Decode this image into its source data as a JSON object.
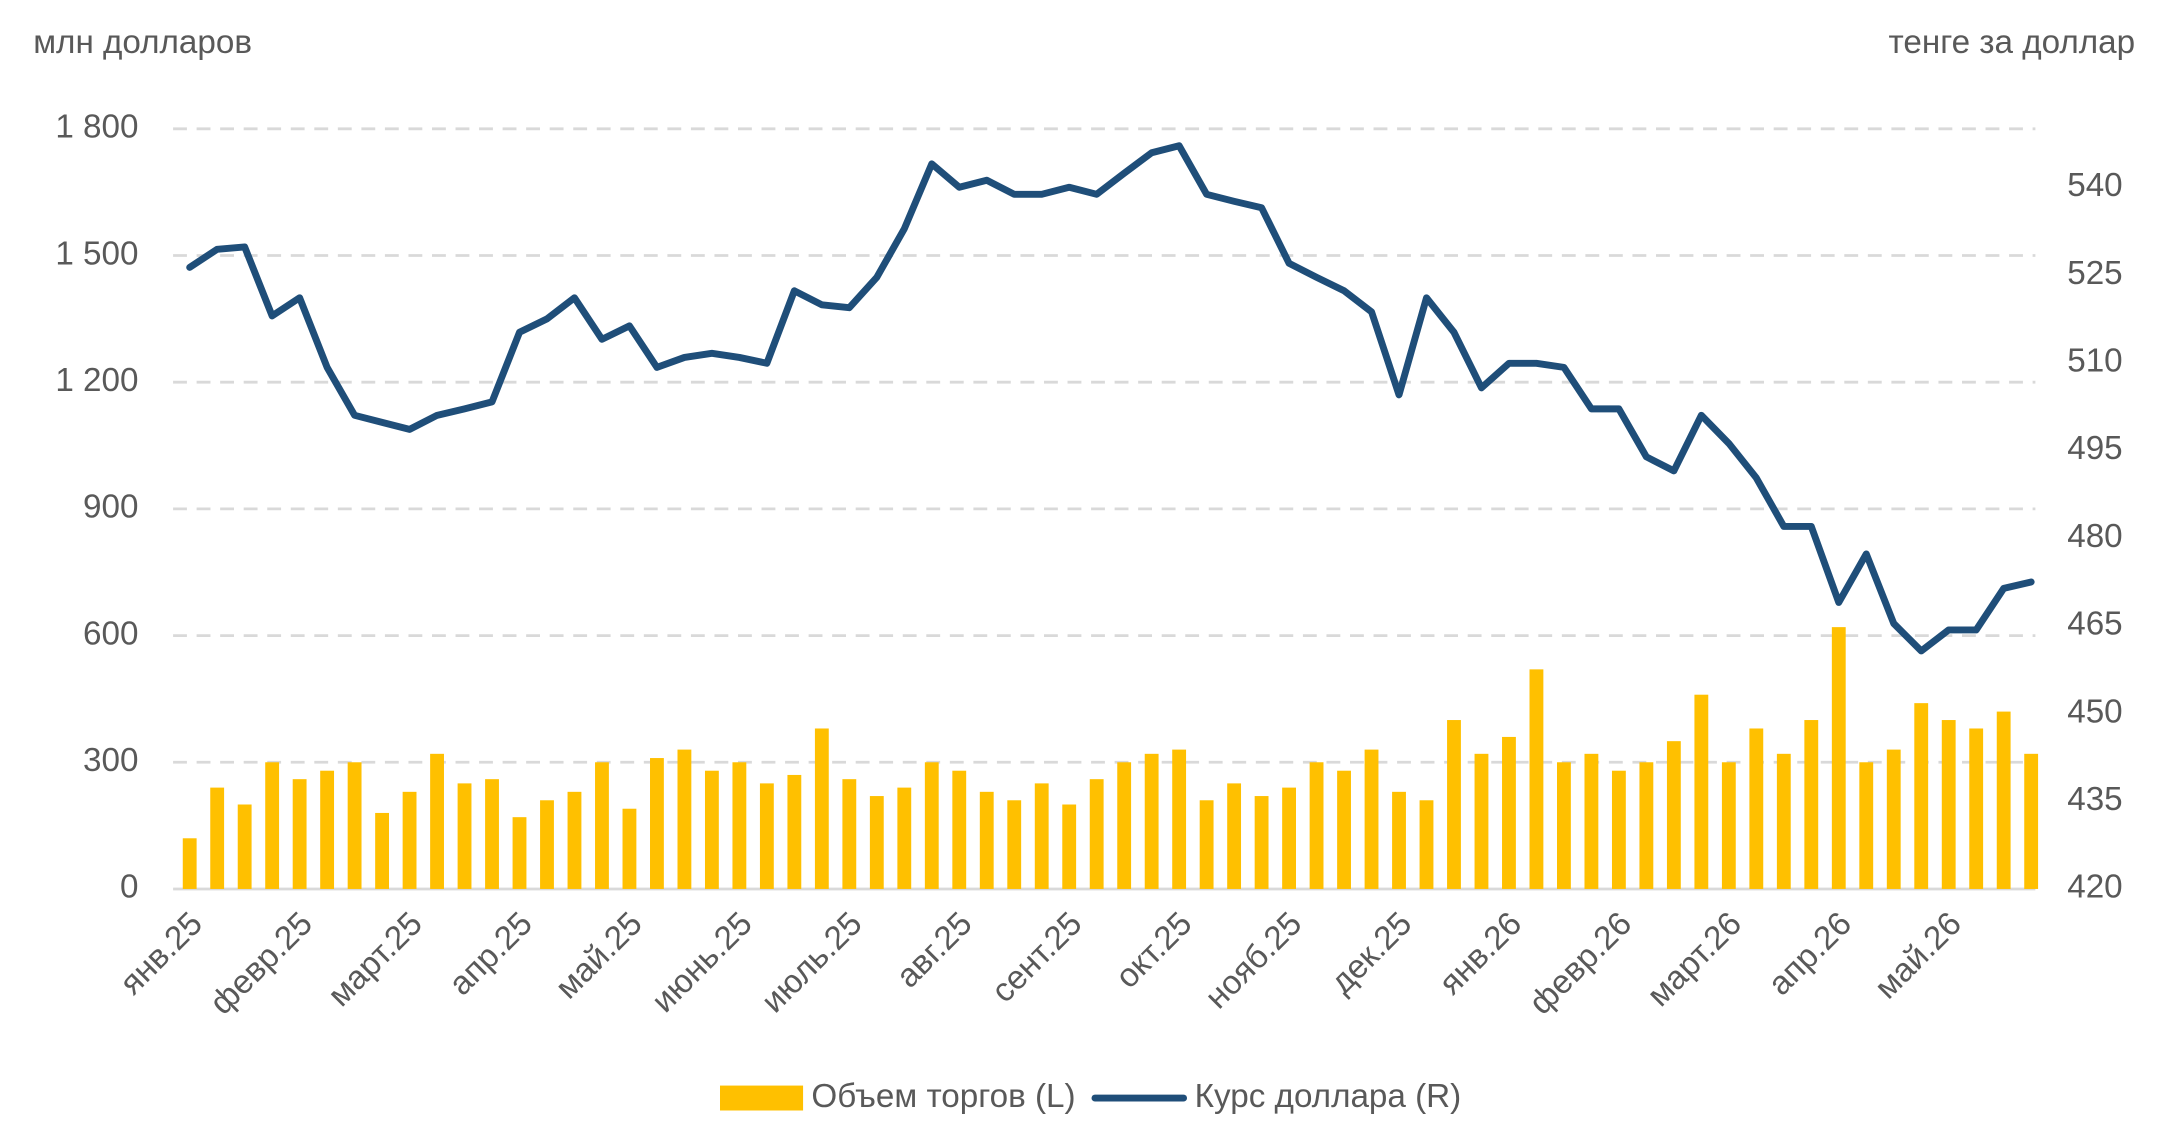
{
  "chart_data": {
    "type": "combo",
    "y_label": "млн долларов",
    "y2_label": "тенге за доллар",
    "categories": [
      "янв.25",
      null,
      null,
      null,
      "февр.25",
      null,
      null,
      null,
      "март.25",
      null,
      null,
      null,
      "апр.25",
      null,
      null,
      null,
      "май.25",
      null,
      null,
      null,
      "июнь.25",
      null,
      null,
      null,
      "июль.25",
      null,
      null,
      null,
      "авг.25",
      null,
      null,
      null,
      "сент.25",
      null,
      null,
      null,
      "окт.25",
      null,
      null,
      null,
      "нояб.25",
      null,
      null,
      null,
      "дек.25",
      null,
      null,
      null,
      "янв.26",
      null,
      null,
      null,
      "февр.26",
      null,
      null,
      null,
      "март.26",
      null,
      null,
      null,
      "апр.26",
      null,
      null,
      null,
      "май.26",
      null,
      null,
      null
    ],
    "series": [
      {
        "name": "Объем торгов (L)",
        "type": "bar",
        "color": "#ffc000",
        "values": [
          120,
          240,
          200,
          300,
          260,
          280,
          300,
          180,
          230,
          320,
          250,
          260,
          170,
          210,
          230,
          300,
          190,
          310,
          330,
          280,
          300,
          250,
          270,
          380,
          260,
          220,
          240,
          300,
          280,
          230,
          210,
          250,
          200,
          260,
          300,
          320,
          330,
          210,
          250,
          220,
          240,
          300,
          280,
          330,
          230,
          210,
          400,
          320,
          360,
          520,
          300,
          320,
          280,
          300,
          350,
          460,
          300,
          380,
          320,
          400,
          620,
          300,
          330,
          440,
          400,
          380,
          420,
          320
        ]
      },
      {
        "name": "Курс доллара (R)",
        "type": "line",
        "axis": "y2",
        "color": "#1f4e79",
        "values": [
          526.3,
          529.4,
          529.8,
          518.0,
          521.1,
          509.2,
          501.0,
          499.8,
          498.6,
          501.0,
          502.1,
          503.3,
          515.2,
          517.5,
          521.1,
          514.0,
          516.3,
          509.2,
          510.9,
          511.6,
          510.9,
          509.9,
          522.3,
          519.9,
          519.4,
          524.6,
          532.9,
          544.0,
          540.0,
          541.2,
          538.8,
          538.8,
          540.0,
          538.8,
          542.4,
          545.9,
          547.1,
          538.8,
          537.6,
          536.5,
          527.0,
          524.6,
          522.3,
          518.7,
          504.5,
          521.1,
          515.2,
          505.7,
          509.9,
          509.9,
          509.2,
          502.1,
          502.1,
          493.9,
          491.5,
          501.0,
          496.2,
          490.3,
          482.0,
          482.0,
          469.0,
          477.3,
          465.4,
          460.7,
          464.3,
          464.3,
          471.4,
          472.5
        ]
      }
    ],
    "ylim": [
      0,
      1800
    ],
    "yticks": [
      0,
      300,
      600,
      900,
      {
        "value": 1200,
        "label": "1 200"
      },
      {
        "value": 1500,
        "label": "1 500"
      },
      {
        "value": 1800,
        "label": "1 800"
      }
    ],
    "y2lim": [
      420,
      550
    ],
    "y2ticks": [
      420,
      435,
      450,
      465,
      480,
      495,
      510,
      525,
      540
    ],
    "grid": true,
    "legend": "bottom"
  }
}
